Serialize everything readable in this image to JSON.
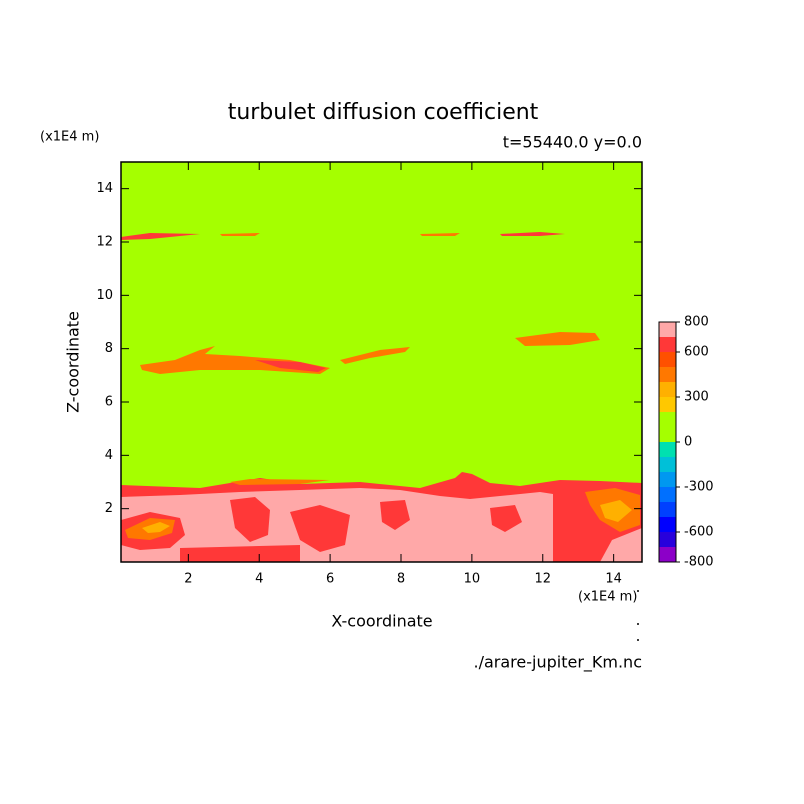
{
  "chart_data": {
    "type": "contour",
    "title": "turbulet diffusion coefficient",
    "subtitle": "t=55440.0 y=0.0",
    "xlabel": "X-coordinate",
    "ylabel": "Z-coordinate",
    "x_unit": "(x1E4 m)",
    "y_unit": "(x1E4 m)",
    "source": "./arare-jupiter_Km.nc",
    "xlim": [
      0.1,
      14.8
    ],
    "xticks": [
      2,
      4,
      6,
      8,
      10,
      12,
      14
    ],
    "ylim": [
      0,
      15
    ],
    "yticks": [
      2,
      4,
      6,
      8,
      10,
      12,
      14
    ],
    "levels": [
      -800,
      -700,
      -600,
      -500,
      -400,
      -300,
      -200,
      -100,
      0,
      100,
      200,
      300,
      400,
      500,
      600,
      700,
      800
    ],
    "colors": [
      "#8c00c8",
      "#2800dc",
      "#0000ff",
      "#0040ff",
      "#0070ff",
      "#0098f0",
      "#00c0d8",
      "#00e0b0",
      "#a5ff00",
      "#a5ff00",
      "#ffc800",
      "#ffb000",
      "#ff7800",
      "#ff5000",
      "#ff3838",
      "#ffa8a8"
    ],
    "colorbar_ticks": [
      800,
      600,
      300,
      0,
      -300,
      -600,
      -800
    ]
  }
}
